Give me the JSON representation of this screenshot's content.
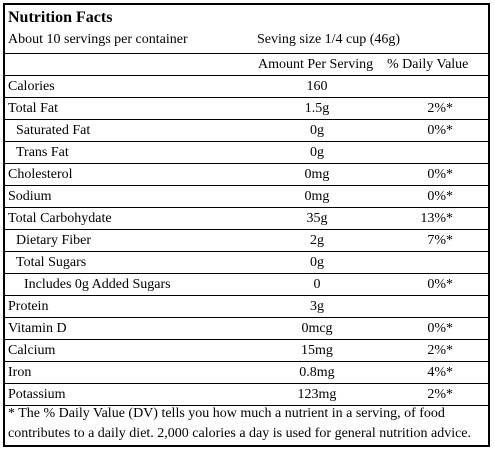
{
  "header": {
    "title": "Nutrition Facts",
    "servings": "About 10 servings per container",
    "serving_size": "Seving size 1/4 cup (46g)"
  },
  "columns": {
    "amount": "Amount Per Serving",
    "daily_value": "% Daily Value"
  },
  "nutrients": [
    {
      "name": "Calories",
      "amount": "160",
      "dv": ""
    },
    {
      "name": "Total Fat",
      "amount": "1.5g",
      "dv": "2%*"
    },
    {
      "name": "Saturated Fat",
      "amount": "0g",
      "dv": "0%*"
    },
    {
      "name": "Trans Fat",
      "amount": "0g",
      "dv": ""
    },
    {
      "name": "Cholesterol",
      "amount": "0mg",
      "dv": "0%*"
    },
    {
      "name": "Sodium",
      "amount": "0mg",
      "dv": "0%*"
    },
    {
      "name": "Total Carbohydate",
      "amount": "35g",
      "dv": "13%*"
    },
    {
      "name": "Dietary Fiber",
      "amount": "2g",
      "dv": "7%*"
    },
    {
      "name": "Total Sugars",
      "amount": "0g",
      "dv": ""
    },
    {
      "name": "Includes 0g Added Sugars",
      "amount": "0",
      "dv": "0%*"
    },
    {
      "name": "Protein",
      "amount": "3g",
      "dv": ""
    },
    {
      "name": "Vitamin D",
      "amount": "0mcg",
      "dv": "0%*"
    },
    {
      "name": "Calcium",
      "amount": "15mg",
      "dv": "2%*"
    },
    {
      "name": "Iron",
      "amount": "0.8mg",
      "dv": "4%*"
    },
    {
      "name": "Potassium",
      "amount": "123mg",
      "dv": "2%*"
    }
  ],
  "footnote": {
    "line1": "* The % Daily Value (DV) tells you how much a nutrient in a serving, of food",
    "line2": "contributes to a daily diet. 2,000 calories a day is used for general nutrition advice."
  }
}
